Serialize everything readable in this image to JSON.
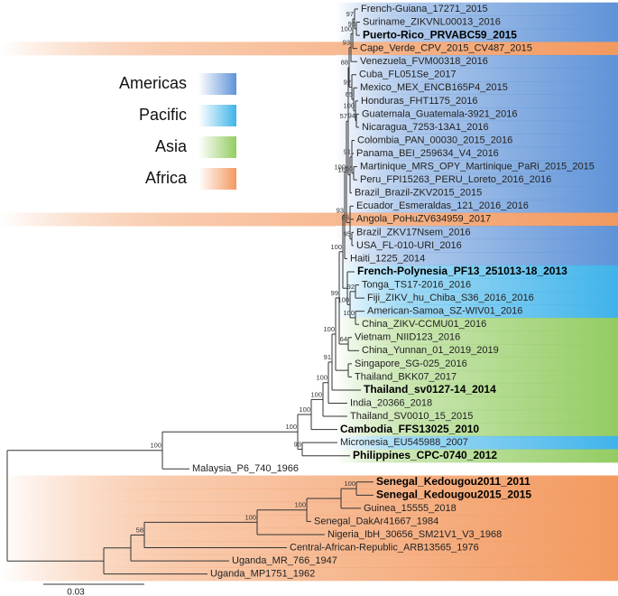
{
  "legend": [
    {
      "label": "Americas",
      "color": "#5f93d8"
    },
    {
      "label": "Pacific",
      "color": "#3fb3ea"
    },
    {
      "label": "Asia",
      "color": "#93cc62"
    },
    {
      "label": "Africa",
      "color": "#f3995f"
    }
  ],
  "leaves": [
    {
      "label": "French-Guiana_17271_2015",
      "region": "Americas"
    },
    {
      "label": "Suriname_ZIKVNL00013_2016",
      "region": "Americas"
    },
    {
      "label": "Puerto-Rico_PRVABC59_2015",
      "region": "Americas",
      "bold": true
    },
    {
      "label": "Cape_Verde_CPV_2015_CV487_2015",
      "region": "Africa"
    },
    {
      "label": "Venezuela_FVM00318_2016",
      "region": "Americas"
    },
    {
      "label": "Cuba_FL051Se_2017",
      "region": "Americas"
    },
    {
      "label": "Mexico_MEX_ENCB165P4_2015",
      "region": "Americas"
    },
    {
      "label": "Honduras_FHT1175_2016",
      "region": "Americas"
    },
    {
      "label": "Guatemala_Guatemala-3921_2016",
      "region": "Americas"
    },
    {
      "label": "Nicaragua_7253-13A1_2016",
      "region": "Americas"
    },
    {
      "label": "Colombia_PAN_00030_2015_2016",
      "region": "Americas"
    },
    {
      "label": "Panama_BEI_259634_V4_2016",
      "region": "Americas"
    },
    {
      "label": "Martinique_MRS_OPY_Martinique_PaRi_2015_2015",
      "region": "Americas"
    },
    {
      "label": "Peru_FPI15263_PERU_Loreto_2016_2016",
      "region": "Americas"
    },
    {
      "label": "Brazil_Brazil-ZKV2015_2015",
      "region": "Americas"
    },
    {
      "label": "Ecuador_Esmeraldas_121_2016_2016",
      "region": "Americas"
    },
    {
      "label": "Angola_PoHuZV634959_2017",
      "region": "Africa"
    },
    {
      "label": "Brazil_ZKV17Nsem_2016",
      "region": "Americas"
    },
    {
      "label": "USA_FL-010-URI_2016",
      "region": "Americas"
    },
    {
      "label": "Haiti_1225_2014",
      "region": "Americas"
    },
    {
      "label": "French-Polynesia_PF13_251013-18_2013",
      "region": "Pacific",
      "bold": true
    },
    {
      "label": "Tonga_TS17-2016_2016",
      "region": "Pacific"
    },
    {
      "label": "Fiji_ZIKV_hu_Chiba_S36_2016_2016",
      "region": "Pacific"
    },
    {
      "label": "American-Samoa_SZ-WIV01_2016",
      "region": "Pacific"
    },
    {
      "label": "China_ZIKV-CCMU01_2016",
      "region": "Asia"
    },
    {
      "label": "Vietnam_NIID123_2016",
      "region": "Asia"
    },
    {
      "label": "China_Yunnan_01_2019_2019",
      "region": "Asia"
    },
    {
      "label": "Singapore_SG-025_2016",
      "region": "Asia"
    },
    {
      "label": "Thailand_BKK07_2017",
      "region": "Asia"
    },
    {
      "label": "Thailand_sv0127-14_2014",
      "region": "Asia",
      "bold": true
    },
    {
      "label": "India_20366_2018",
      "region": "Asia"
    },
    {
      "label": "Thailand_SV0010_15_2015",
      "region": "Asia"
    },
    {
      "label": "Cambodia_FFS13025_2010",
      "region": "Asia",
      "bold": true
    },
    {
      "label": "Micronesia_EU545988_2007",
      "region": "Pacific"
    },
    {
      "label": "Philippines_CPC-0740_2012",
      "region": "Asia",
      "bold": true
    },
    {
      "label": "Malaysia_P6_740_1966"
    },
    {
      "label": "Senegal_Kedougou2011_2011",
      "region": "Africa",
      "bold": true
    },
    {
      "label": "Senegal_Kedougou2015_2015",
      "region": "Africa",
      "bold": true
    },
    {
      "label": "Guinea_15555_2018",
      "region": "Africa"
    },
    {
      "label": "Senegal_DakAr41667_1984",
      "region": "Africa"
    },
    {
      "label": "Nigeria_IbH_30656_SM21V1_V3_1968",
      "region": "Africa"
    },
    {
      "label": "Central-African-Republic_ARB13565_1976",
      "region": "Africa"
    },
    {
      "label": "Uganda_MR_766_1947",
      "region": "Africa"
    },
    {
      "label": "Uganda_MP1751_1962",
      "region": "Africa"
    }
  ],
  "supports": [
    97,
    95,
    100,
    93,
    88,
    92,
    65,
    100,
    94,
    57,
    91,
    100,
    96,
    100,
    86,
    95,
    93,
    100,
    92,
    100,
    100,
    99,
    64,
    100,
    91,
    100,
    100,
    100,
    100,
    93,
    100,
    100,
    100,
    100,
    58
  ],
  "scale_label": "0.03"
}
